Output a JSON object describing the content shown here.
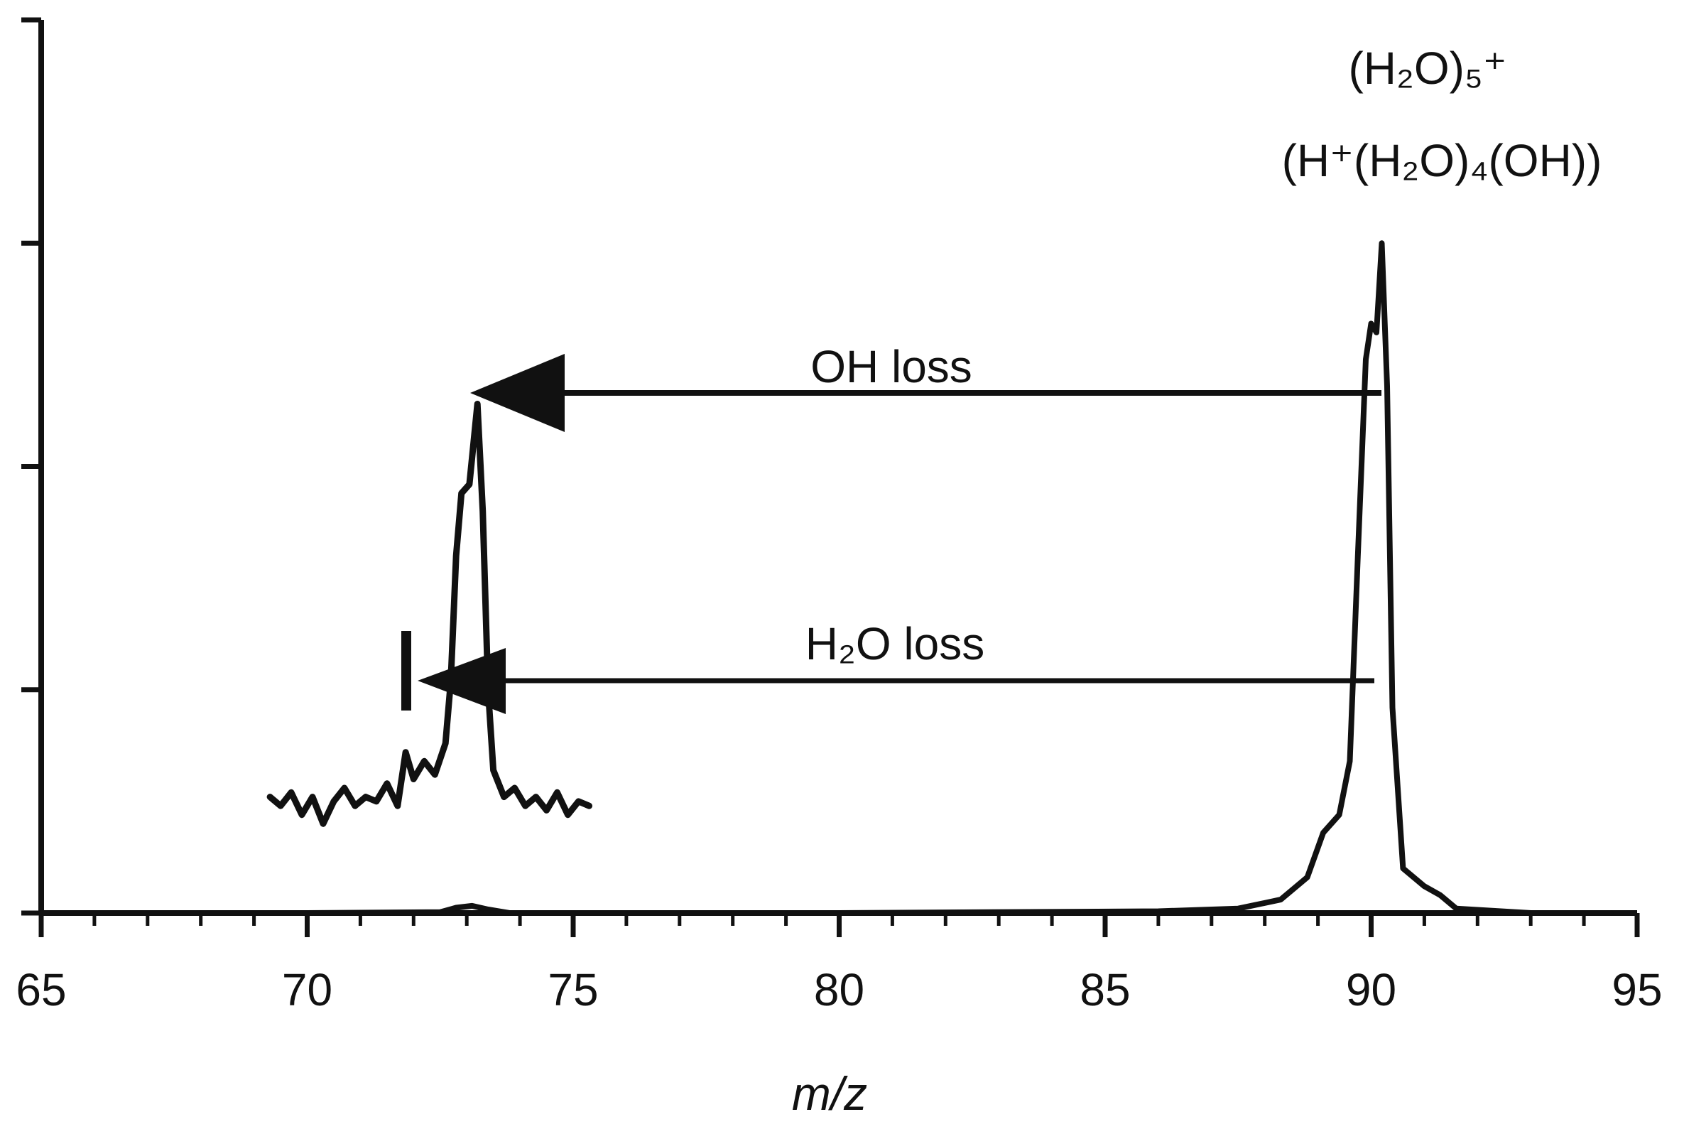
{
  "chart_data": {
    "type": "line",
    "title": "",
    "xlabel": "m/z",
    "ylabel": "",
    "xlim": [
      65,
      95
    ],
    "ylim": [
      0,
      100
    ],
    "x_ticks": [
      65,
      70,
      75,
      80,
      85,
      90,
      95
    ],
    "y_ticks": [
      0,
      25,
      50,
      75,
      100
    ],
    "grid": false,
    "legend": "none",
    "series": [
      {
        "points": [
          [
            65,
            0
          ],
          [
            70,
            0
          ],
          [
            72.5,
            0.1
          ],
          [
            72.8,
            0.6
          ],
          [
            73.1,
            0.8
          ],
          [
            73.4,
            0.4
          ],
          [
            73.8,
            0
          ],
          [
            80,
            0
          ],
          [
            86,
            0.2
          ],
          [
            87.5,
            0.5
          ],
          [
            88.3,
            1.5
          ],
          [
            88.8,
            4
          ],
          [
            89.1,
            9
          ],
          [
            89.4,
            11
          ],
          [
            89.6,
            17
          ],
          [
            89.75,
            40
          ],
          [
            89.9,
            62
          ],
          [
            90.0,
            66
          ],
          [
            90.1,
            65
          ],
          [
            90.2,
            75
          ],
          [
            90.3,
            59
          ],
          [
            90.4,
            23
          ],
          [
            90.6,
            5
          ],
          [
            91.0,
            3
          ],
          [
            91.3,
            2
          ],
          [
            91.6,
            0.5
          ],
          [
            93,
            0
          ],
          [
            94.5,
            0
          ]
        ]
      },
      {
        "points": [
          [
            69.3,
            13
          ],
          [
            69.5,
            12
          ],
          [
            69.7,
            13.5
          ],
          [
            69.9,
            11
          ],
          [
            70.1,
            13
          ],
          [
            70.3,
            10
          ],
          [
            70.5,
            12.5
          ],
          [
            70.7,
            14
          ],
          [
            70.9,
            12
          ],
          [
            71.1,
            13
          ],
          [
            71.3,
            12.5
          ],
          [
            71.5,
            14.5
          ],
          [
            71.7,
            12
          ],
          [
            71.85,
            18
          ],
          [
            72.0,
            15
          ],
          [
            72.2,
            17
          ],
          [
            72.4,
            15.5
          ],
          [
            72.6,
            19
          ],
          [
            72.7,
            26
          ],
          [
            72.8,
            40
          ],
          [
            72.9,
            47
          ],
          [
            73.05,
            48
          ],
          [
            73.2,
            57
          ],
          [
            73.3,
            45
          ],
          [
            73.4,
            25
          ],
          [
            73.5,
            16
          ],
          [
            73.7,
            13
          ],
          [
            73.9,
            14
          ],
          [
            74.1,
            12
          ],
          [
            74.3,
            13
          ],
          [
            74.5,
            11.5
          ],
          [
            74.7,
            13.5
          ],
          [
            74.9,
            11
          ],
          [
            75.1,
            12.5
          ],
          [
            75.3,
            12
          ]
        ]
      }
    ],
    "annotations": {
      "peak_top_line": "(H₂O)₅⁺",
      "peak_second_line": "(H⁺(H₂O)₄(OH))",
      "oh_arrow": "OH loss",
      "water_arrow": "H₂O loss"
    }
  }
}
